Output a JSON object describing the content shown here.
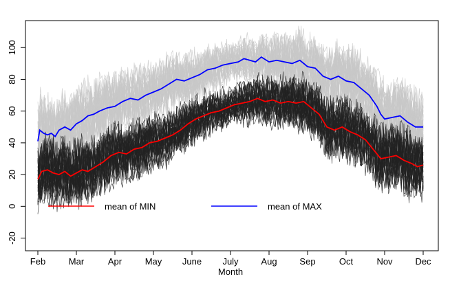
{
  "chart_data": {
    "type": "line",
    "title": "",
    "xlabel": "Month",
    "ylabel": "",
    "x_ticks": [
      "Feb",
      "Mar",
      "Apr",
      "May",
      "June",
      "July",
      "Aug",
      "Sep",
      "Oct",
      "Nov",
      "Dec"
    ],
    "x_range": [
      0,
      10
    ],
    "ylim": [
      -28,
      117
    ],
    "y_ticks": [
      -20,
      0,
      20,
      40,
      60,
      80,
      100
    ],
    "grid": false,
    "legend_position": "bottom-left",
    "series": [
      {
        "name": "mean of MIN",
        "color": "#ff0000",
        "points": [
          [
            0.0,
            17
          ],
          [
            0.1,
            22
          ],
          [
            0.25,
            23
          ],
          [
            0.4,
            21
          ],
          [
            0.55,
            20
          ],
          [
            0.7,
            22
          ],
          [
            0.85,
            19
          ],
          [
            1.0,
            21
          ],
          [
            1.15,
            23
          ],
          [
            1.3,
            22
          ],
          [
            1.5,
            25
          ],
          [
            1.7,
            28
          ],
          [
            1.9,
            32
          ],
          [
            2.1,
            34
          ],
          [
            2.3,
            33
          ],
          [
            2.5,
            36
          ],
          [
            2.7,
            37
          ],
          [
            2.9,
            40
          ],
          [
            3.1,
            41
          ],
          [
            3.3,
            43
          ],
          [
            3.5,
            45
          ],
          [
            3.7,
            48
          ],
          [
            3.9,
            52
          ],
          [
            4.1,
            55
          ],
          [
            4.3,
            57
          ],
          [
            4.5,
            59
          ],
          [
            4.7,
            60
          ],
          [
            4.9,
            62
          ],
          [
            5.1,
            64
          ],
          [
            5.3,
            65
          ],
          [
            5.5,
            66
          ],
          [
            5.7,
            68
          ],
          [
            5.9,
            66
          ],
          [
            6.1,
            67
          ],
          [
            6.3,
            65
          ],
          [
            6.5,
            66
          ],
          [
            6.7,
            65
          ],
          [
            6.9,
            66
          ],
          [
            7.1,
            62
          ],
          [
            7.3,
            58
          ],
          [
            7.5,
            50
          ],
          [
            7.7,
            48
          ],
          [
            7.9,
            50
          ],
          [
            8.1,
            47
          ],
          [
            8.3,
            45
          ],
          [
            8.5,
            42
          ],
          [
            8.7,
            36
          ],
          [
            8.9,
            30
          ],
          [
            9.1,
            31
          ],
          [
            9.3,
            32
          ],
          [
            9.5,
            29
          ],
          [
            9.7,
            27
          ],
          [
            9.85,
            25
          ],
          [
            10.0,
            26
          ]
        ]
      },
      {
        "name": "mean of MAX",
        "color": "#0000ff",
        "points": [
          [
            0.0,
            41
          ],
          [
            0.05,
            48
          ],
          [
            0.15,
            46
          ],
          [
            0.25,
            45
          ],
          [
            0.35,
            46
          ],
          [
            0.45,
            44
          ],
          [
            0.55,
            48
          ],
          [
            0.7,
            50
          ],
          [
            0.85,
            48
          ],
          [
            1.0,
            52
          ],
          [
            1.15,
            54
          ],
          [
            1.3,
            57
          ],
          [
            1.45,
            58
          ],
          [
            1.6,
            60
          ],
          [
            1.8,
            62
          ],
          [
            2.0,
            63
          ],
          [
            2.2,
            66
          ],
          [
            2.4,
            68
          ],
          [
            2.6,
            67
          ],
          [
            2.8,
            70
          ],
          [
            3.0,
            72
          ],
          [
            3.2,
            74
          ],
          [
            3.4,
            77
          ],
          [
            3.6,
            80
          ],
          [
            3.8,
            79
          ],
          [
            4.0,
            81
          ],
          [
            4.2,
            83
          ],
          [
            4.4,
            86
          ],
          [
            4.6,
            87
          ],
          [
            4.8,
            89
          ],
          [
            5.0,
            90
          ],
          [
            5.2,
            91
          ],
          [
            5.35,
            93
          ],
          [
            5.5,
            92
          ],
          [
            5.65,
            91
          ],
          [
            5.8,
            94
          ],
          [
            6.0,
            91
          ],
          [
            6.2,
            92
          ],
          [
            6.4,
            91
          ],
          [
            6.6,
            90
          ],
          [
            6.8,
            92
          ],
          [
            7.0,
            88
          ],
          [
            7.2,
            87
          ],
          [
            7.4,
            82
          ],
          [
            7.6,
            80
          ],
          [
            7.8,
            82
          ],
          [
            8.0,
            79
          ],
          [
            8.2,
            78
          ],
          [
            8.4,
            74
          ],
          [
            8.6,
            70
          ],
          [
            8.8,
            63
          ],
          [
            8.9,
            58
          ],
          [
            9.0,
            55
          ],
          [
            9.2,
            56
          ],
          [
            9.4,
            57
          ],
          [
            9.6,
            53
          ],
          [
            9.8,
            50
          ],
          [
            10.0,
            50
          ]
        ]
      }
    ],
    "individual_series": {
      "description": "many individual yearly traces (grey = MAX, black = MIN)",
      "max_traces_color": "#c8c8c8",
      "min_traces_color": "#222222"
    }
  }
}
